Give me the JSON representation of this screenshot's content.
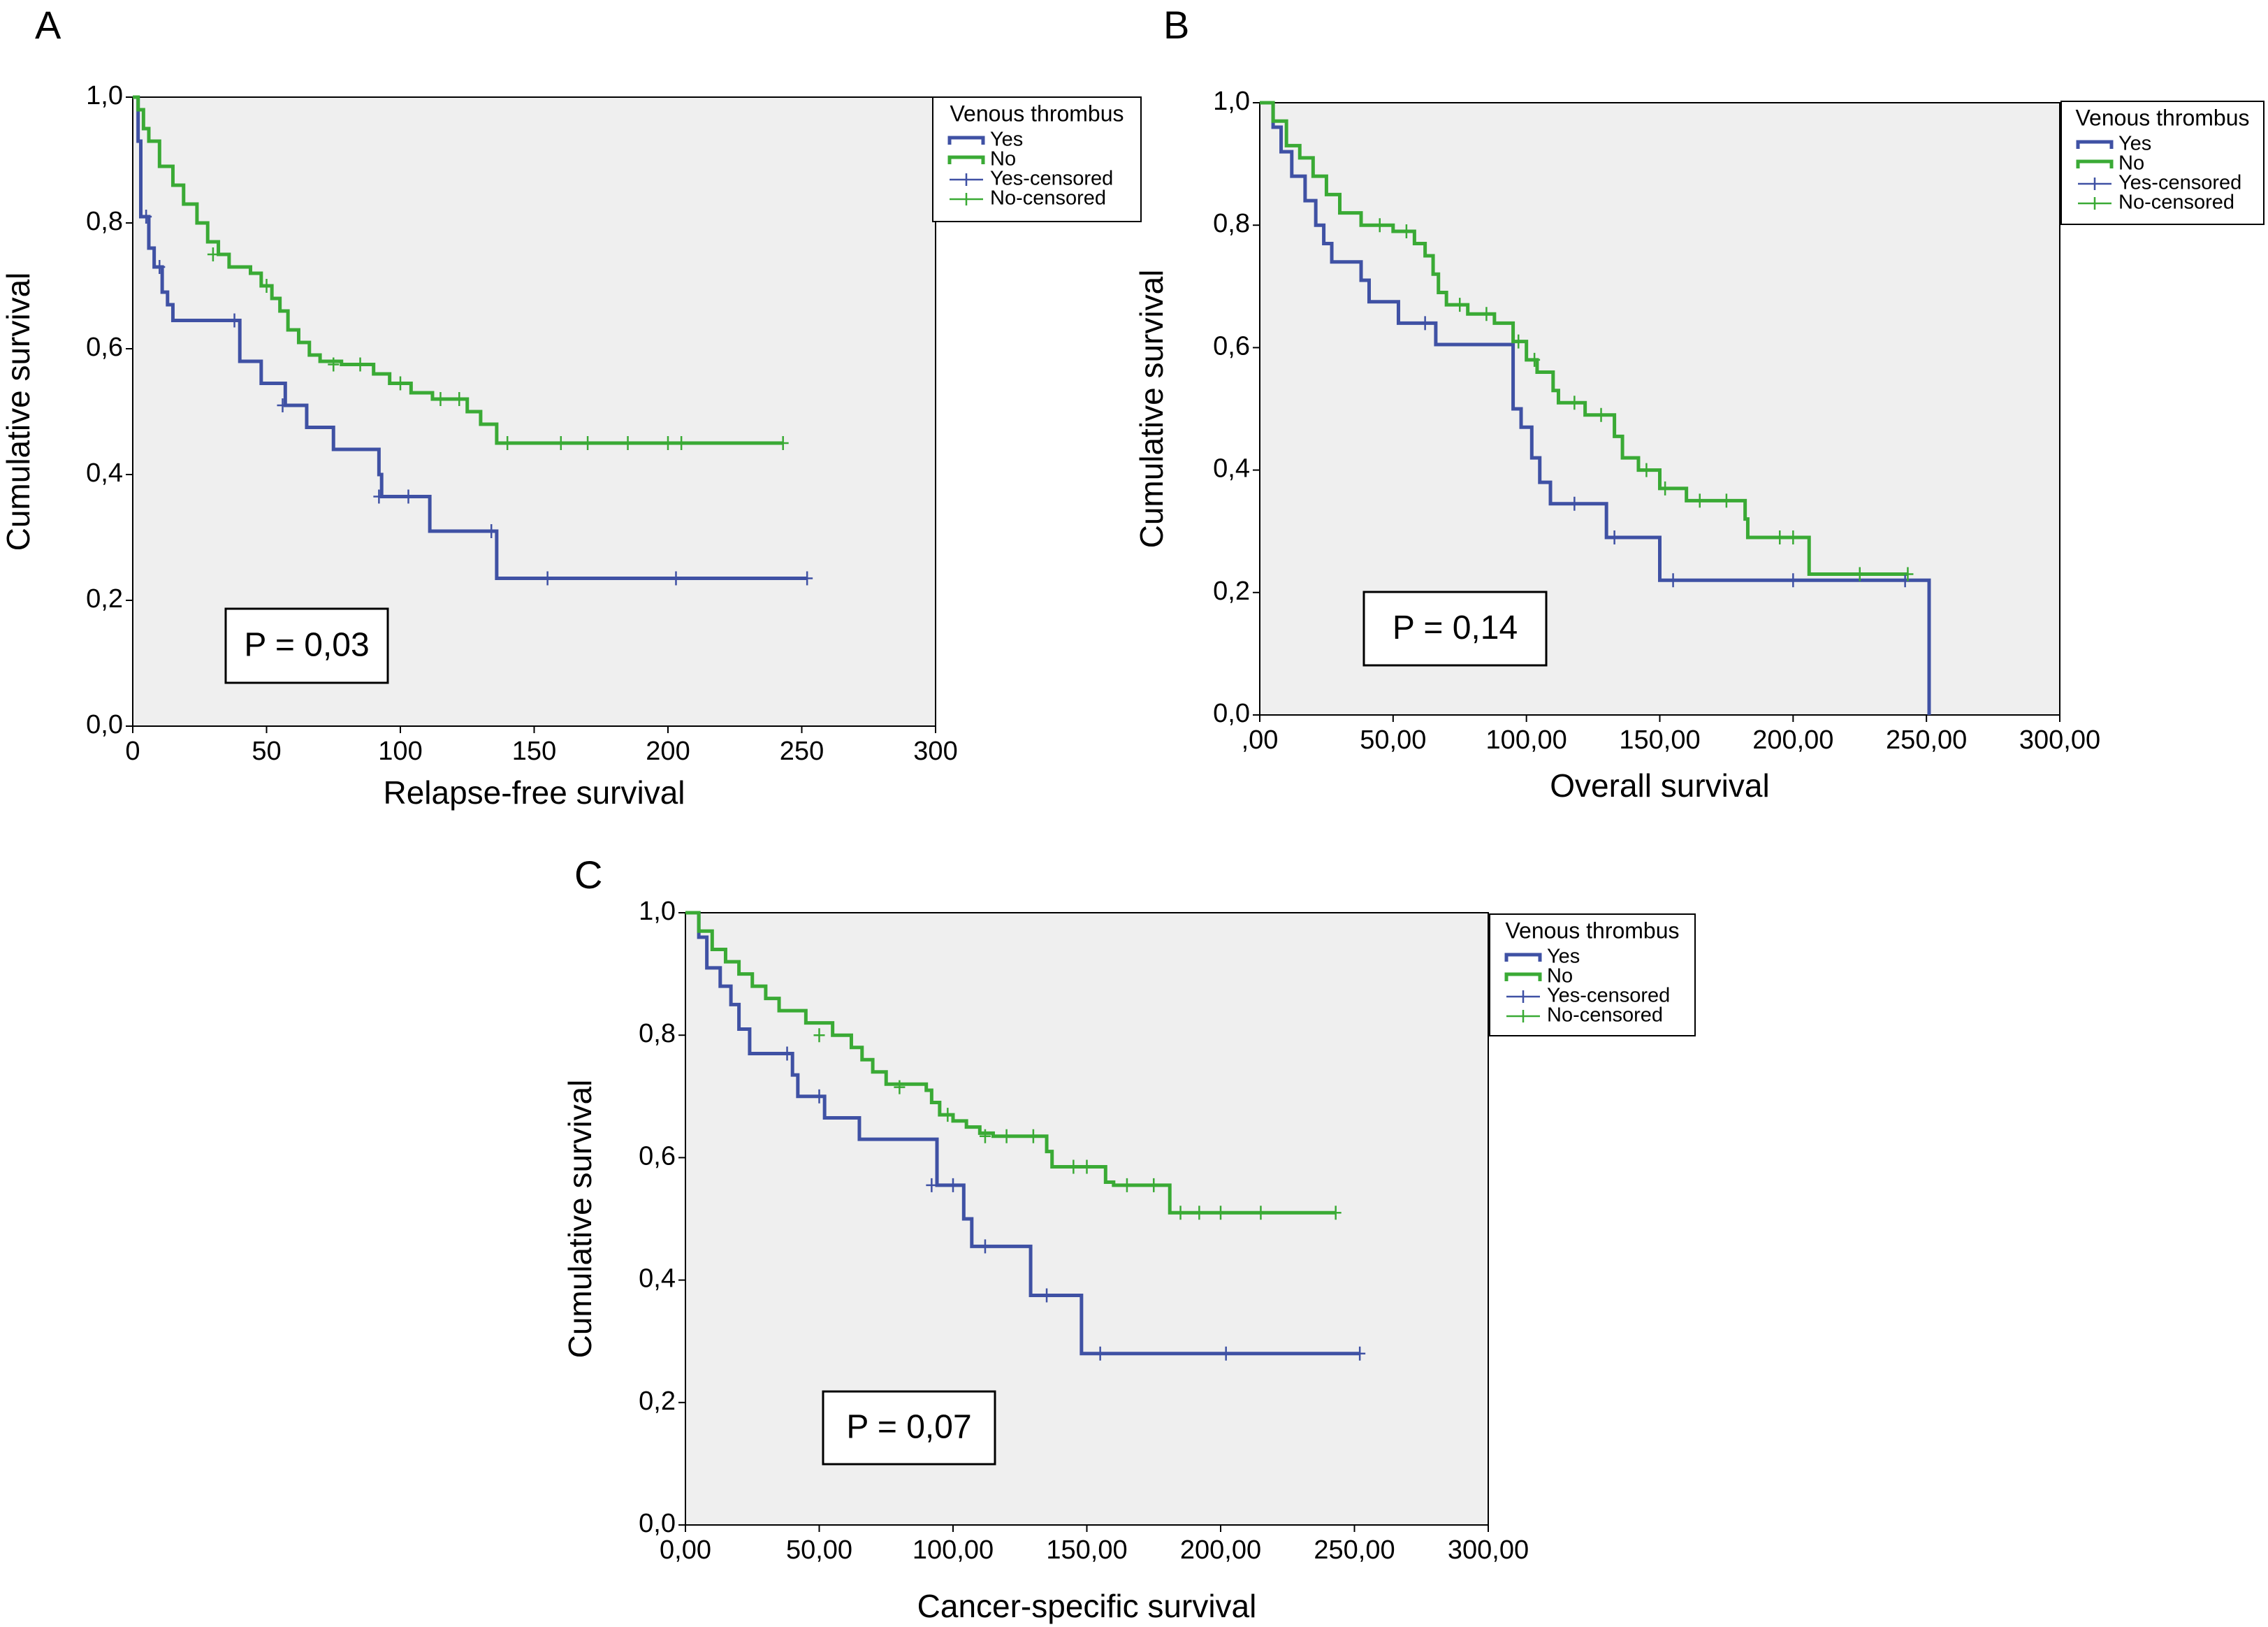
{
  "chart_data": [
    {
      "type": "kaplan-meier",
      "panel_label": "A",
      "xlabel": "Relapse-free survival",
      "ylabel": "Cumulative survival",
      "annotation": "P = 0,03",
      "legend_title": "Venous thrombus",
      "legend": "upper right",
      "xlim": [
        0,
        300
      ],
      "xticks": [
        0,
        50,
        100,
        150,
        200,
        250,
        300
      ],
      "ylim": [
        0,
        1
      ],
      "yticks": [
        {
          "value": 0,
          "label": "0,0"
        },
        {
          "value": 0.2,
          "label": "0,2"
        },
        {
          "value": 0.4,
          "label": "0,4"
        },
        {
          "value": 0.6,
          "label": "0,6"
        },
        {
          "value": 0.8,
          "label": "0,8"
        },
        {
          "value": 1,
          "label": "1,0"
        }
      ],
      "series": [
        {
          "name": "Yes",
          "color": "#3f51a4",
          "style": "step",
          "x": [
            0,
            2,
            3,
            6,
            8,
            11,
            13,
            15,
            40,
            48,
            57,
            65,
            75,
            92,
            93,
            111,
            136,
            252
          ],
          "values": [
            1,
            0.93,
            0.81,
            0.76,
            0.73,
            0.69,
            0.67,
            0.645,
            0.58,
            0.545,
            0.51,
            0.475,
            0.44,
            0.4,
            0.365,
            0.31,
            0.235,
            0.235
          ]
        },
        {
          "name": "No",
          "color": "#3aaa35",
          "style": "step",
          "x": [
            0,
            2,
            4,
            6,
            10,
            15,
            19,
            24,
            28,
            32,
            36,
            44,
            48,
            52,
            55,
            58,
            62,
            66,
            70,
            78,
            90,
            96,
            104,
            112,
            125,
            130,
            136,
            243
          ],
          "values": [
            1,
            0.98,
            0.95,
            0.93,
            0.89,
            0.86,
            0.83,
            0.8,
            0.77,
            0.75,
            0.73,
            0.72,
            0.7,
            0.68,
            0.66,
            0.63,
            0.61,
            0.59,
            0.58,
            0.575,
            0.56,
            0.545,
            0.53,
            0.52,
            0.5,
            0.48,
            0.45,
            0.45
          ]
        },
        {
          "name": "Yes-censored",
          "color": "#3f51a4",
          "style": "marker",
          "x": [
            5,
            10,
            38,
            56,
            92,
            103,
            134,
            155,
            203,
            252
          ],
          "values": [
            0.81,
            0.73,
            0.645,
            0.51,
            0.365,
            0.365,
            0.31,
            0.235,
            0.235,
            0.235
          ]
        },
        {
          "name": "No-censored",
          "color": "#3aaa35",
          "style": "marker",
          "x": [
            30,
            50,
            75,
            85,
            100,
            115,
            122,
            140,
            160,
            170,
            185,
            200,
            205,
            243
          ],
          "values": [
            0.75,
            0.7,
            0.575,
            0.575,
            0.545,
            0.52,
            0.52,
            0.45,
            0.45,
            0.45,
            0.45,
            0.45,
            0.45,
            0.45
          ]
        }
      ]
    },
    {
      "type": "kaplan-meier",
      "panel_label": "B",
      "xlabel": "Overall survival",
      "ylabel": "Cumulative survival",
      "annotation": "P = 0,14",
      "legend_title": "Venous thrombus",
      "legend": "upper right",
      "xlim": [
        0,
        300
      ],
      "xticks": [
        {
          "value": 0,
          "label": ",00"
        },
        {
          "value": 50,
          "label": "50,00"
        },
        {
          "value": 100,
          "label": "100,00"
        },
        {
          "value": 150,
          "label": "150,00"
        },
        {
          "value": 200,
          "label": "200,00"
        },
        {
          "value": 250,
          "label": "250,00"
        },
        {
          "value": 300,
          "label": "300,00"
        }
      ],
      "ylim": [
        0,
        1
      ],
      "yticks": [
        {
          "value": 0,
          "label": "0,0"
        },
        {
          "value": 0.2,
          "label": "0,2"
        },
        {
          "value": 0.4,
          "label": "0,4"
        },
        {
          "value": 0.6,
          "label": "0,6"
        },
        {
          "value": 0.8,
          "label": "0,8"
        },
        {
          "value": 1,
          "label": "1,0"
        }
      ],
      "series": [
        {
          "name": "Yes",
          "color": "#3f51a4",
          "style": "step",
          "x": [
            0,
            5,
            8,
            12,
            17,
            21,
            24,
            27,
            38,
            41,
            52,
            66,
            95,
            98,
            102,
            105,
            109,
            130,
            150,
            251,
            251
          ],
          "values": [
            1,
            0.96,
            0.92,
            0.88,
            0.84,
            0.8,
            0.77,
            0.74,
            0.71,
            0.675,
            0.64,
            0.605,
            0.5,
            0.47,
            0.42,
            0.38,
            0.345,
            0.29,
            0.22,
            0.22,
            0
          ]
        },
        {
          "name": "No",
          "color": "#3aaa35",
          "style": "step",
          "x": [
            0,
            5,
            10,
            15,
            20,
            25,
            30,
            38,
            50,
            58,
            62,
            65,
            67,
            70,
            78,
            88,
            95,
            100,
            104,
            110,
            112,
            122,
            133,
            136,
            142,
            150,
            160,
            182,
            183,
            206,
            243
          ],
          "values": [
            1,
            0.97,
            0.93,
            0.91,
            0.88,
            0.85,
            0.82,
            0.8,
            0.79,
            0.77,
            0.75,
            0.72,
            0.69,
            0.67,
            0.655,
            0.64,
            0.61,
            0.58,
            0.56,
            0.53,
            0.51,
            0.49,
            0.455,
            0.42,
            0.4,
            0.37,
            0.35,
            0.32,
            0.29,
            0.23,
            0.23
          ]
        },
        {
          "name": "Yes-censored",
          "color": "#3f51a4",
          "style": "marker",
          "x": [
            62,
            118,
            133,
            155,
            200,
            242
          ],
          "values": [
            0.64,
            0.345,
            0.29,
            0.22,
            0.22,
            0.22
          ]
        },
        {
          "name": "No-censored",
          "color": "#3aaa35",
          "style": "marker",
          "x": [
            45,
            55,
            75,
            85,
            97,
            103,
            118,
            128,
            145,
            152,
            165,
            175,
            195,
            200,
            225,
            243
          ],
          "values": [
            0.8,
            0.79,
            0.67,
            0.655,
            0.61,
            0.58,
            0.51,
            0.49,
            0.4,
            0.37,
            0.35,
            0.35,
            0.29,
            0.29,
            0.23,
            0.23
          ]
        }
      ]
    },
    {
      "type": "kaplan-meier",
      "panel_label": "C",
      "xlabel": "Cancer-specific survival",
      "ylabel": "Cumulative survival",
      "annotation": "P = 0,07",
      "legend_title": "Venous thrombus",
      "legend": "upper right",
      "xlim": [
        0,
        300
      ],
      "xticks": [
        {
          "value": 0,
          "label": "0,00"
        },
        {
          "value": 50,
          "label": "50,00"
        },
        {
          "value": 100,
          "label": "100,00"
        },
        {
          "value": 150,
          "label": "150,00"
        },
        {
          "value": 200,
          "label": "200,00"
        },
        {
          "value": 250,
          "label": "250,00"
        },
        {
          "value": 300,
          "label": "300,00"
        }
      ],
      "ylim": [
        0,
        1
      ],
      "yticks": [
        {
          "value": 0,
          "label": "0,0"
        },
        {
          "value": 0.2,
          "label": "0,2"
        },
        {
          "value": 0.4,
          "label": "0,4"
        },
        {
          "value": 0.6,
          "label": "0,6"
        },
        {
          "value": 0.8,
          "label": "0,8"
        },
        {
          "value": 1,
          "label": "1,0"
        }
      ],
      "series": [
        {
          "name": "Yes",
          "color": "#3f51a4",
          "style": "step",
          "x": [
            0,
            5,
            8,
            13,
            17,
            20,
            24,
            40,
            42,
            52,
            65,
            94,
            104,
            107,
            129,
            148,
            252
          ],
          "values": [
            1,
            0.96,
            0.91,
            0.88,
            0.85,
            0.81,
            0.77,
            0.735,
            0.7,
            0.665,
            0.63,
            0.555,
            0.5,
            0.455,
            0.375,
            0.28,
            0.28
          ]
        },
        {
          "name": "No",
          "color": "#3aaa35",
          "style": "step",
          "x": [
            0,
            5,
            10,
            15,
            20,
            25,
            30,
            35,
            45,
            55,
            62,
            66,
            70,
            75,
            90,
            92,
            95,
            100,
            105,
            110,
            115,
            135,
            137,
            157,
            160,
            181,
            243
          ],
          "values": [
            1,
            0.97,
            0.94,
            0.92,
            0.9,
            0.88,
            0.86,
            0.84,
            0.82,
            0.8,
            0.78,
            0.76,
            0.74,
            0.72,
            0.71,
            0.69,
            0.67,
            0.66,
            0.65,
            0.64,
            0.635,
            0.61,
            0.585,
            0.56,
            0.555,
            0.51,
            0.51
          ]
        },
        {
          "name": "Yes-censored",
          "color": "#3f51a4",
          "style": "marker",
          "x": [
            38,
            50,
            92,
            100,
            112,
            135,
            155,
            202,
            252
          ],
          "values": [
            0.77,
            0.7,
            0.555,
            0.555,
            0.455,
            0.375,
            0.28,
            0.28,
            0.28
          ]
        },
        {
          "name": "No-censored",
          "color": "#3aaa35",
          "style": "marker",
          "x": [
            50,
            80,
            98,
            112,
            120,
            130,
            145,
            150,
            165,
            175,
            185,
            192,
            200,
            215,
            243
          ],
          "values": [
            0.8,
            0.715,
            0.67,
            0.635,
            0.635,
            0.635,
            0.585,
            0.585,
            0.555,
            0.555,
            0.51,
            0.51,
            0.51,
            0.51,
            0.51
          ]
        }
      ]
    }
  ]
}
